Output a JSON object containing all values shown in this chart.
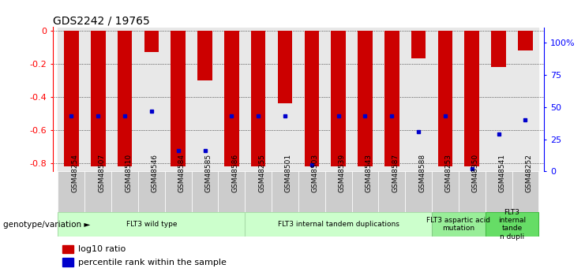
{
  "title": "GDS2242 / 19765",
  "samples": [
    "GSM48254",
    "GSM48507",
    "GSM48510",
    "GSM48546",
    "GSM48584",
    "GSM48585",
    "GSM48586",
    "GSM48255",
    "GSM48501",
    "GSM48503",
    "GSM48539",
    "GSM48543",
    "GSM48587",
    "GSM48588",
    "GSM48253",
    "GSM48350",
    "GSM48541",
    "GSM48252"
  ],
  "log10_ratio": [
    -0.82,
    -0.82,
    -0.82,
    -0.13,
    -0.82,
    -0.3,
    -0.82,
    -0.82,
    -0.44,
    -0.82,
    -0.82,
    -0.82,
    -0.82,
    -0.17,
    -0.82,
    -0.82,
    -0.22,
    -0.12
  ],
  "percentile_rank": [
    43,
    43,
    43,
    47,
    16,
    16,
    43,
    43,
    43,
    5,
    43,
    43,
    43,
    31,
    43,
    2,
    29,
    40
  ],
  "bar_color": "#cc0000",
  "dot_color": "#0000cc",
  "ylim": [
    -0.85,
    0.02
  ],
  "y2lim": [
    0,
    112
  ],
  "y_ticks": [
    0,
    -0.2,
    -0.4,
    -0.6,
    -0.8
  ],
  "y2_ticks": [
    0,
    25,
    50,
    75,
    100
  ],
  "y2_tick_labels": [
    "0",
    "25",
    "50",
    "75",
    "100%"
  ],
  "groups": [
    {
      "label": "FLT3 wild type",
      "start": 0,
      "end": 7,
      "color": "#ccffcc",
      "border": "#aaddaa"
    },
    {
      "label": "FLT3 internal tandem duplications",
      "start": 7,
      "end": 14,
      "color": "#ccffcc",
      "border": "#aaddaa"
    },
    {
      "label": "FLT3 aspartic acid\nmutation",
      "start": 14,
      "end": 16,
      "color": "#99ee99",
      "border": "#88cc88"
    },
    {
      "label": "FLT3\ninternal\ntande\nn dupli",
      "start": 16,
      "end": 18,
      "color": "#66dd66",
      "border": "#44bb44"
    }
  ],
  "genotype_label": "genotype/variation ►",
  "legend_red": "log10 ratio",
  "legend_blue": "percentile rank within the sample",
  "bar_width": 0.55,
  "background_color": "#ffffff"
}
